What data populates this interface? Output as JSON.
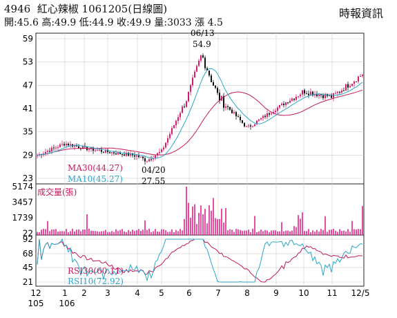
{
  "header": {
    "code": "4946",
    "name": "紅心辣椒",
    "date": "1061205",
    "chart_kind": "(日線圖)",
    "ohlc_line": "開:45.6 高:49.9 低:44.9 收:49.9 量:3033 漲 4.5",
    "brand": "時報資訊"
  },
  "colors": {
    "up": "#d81b6f",
    "down": "#111111",
    "ma30": "#c2185b",
    "ma10": "#2aa6c8",
    "rsi30": "#c2185b",
    "rsi10": "#2aa6c8",
    "volume": "#e0218a"
  },
  "annotations": {
    "peak_date": "06/13",
    "peak_value": "54.9",
    "low_date": "04/20",
    "low_value": "27.55",
    "ma30": "MA30(44.27)",
    "ma10": "MA10(45.27)",
    "volume_title": "成交量(張)",
    "rsi30": "RSI30(60.11)",
    "rsi10": "RSI10(72.92)"
  },
  "x_axis": {
    "months": [
      "12",
      "1",
      "2",
      "3",
      "4",
      "5",
      "6",
      "7",
      "8",
      "9",
      "10",
      "11",
      "12/5"
    ],
    "years": [
      "105",
      "106"
    ]
  },
  "chart_data": [
    {
      "type": "candlestick",
      "title": "4946 紅心辣椒 1061205(日線圖)",
      "ylim": [
        23,
        59
      ],
      "yticks": [
        "59",
        "53",
        "47",
        "41",
        "35",
        "29",
        "23"
      ],
      "series": [
        {
          "name": "MA30",
          "value": 44.27
        },
        {
          "name": "MA10",
          "value": 45.27
        }
      ],
      "keypoints": [
        {
          "month": "12",
          "close": 28.8
        },
        {
          "month": "1",
          "close": 32.0
        },
        {
          "month": "2",
          "close": 30.8
        },
        {
          "month": "3",
          "close": 29.8
        },
        {
          "month": "4",
          "close": 28.8
        },
        {
          "month": "04/20",
          "close": 27.55
        },
        {
          "month": "5",
          "close": 30.0
        },
        {
          "month": "6",
          "close": 45.0
        },
        {
          "month": "06/13",
          "close": 54.9
        },
        {
          "month": "7",
          "close": 44.0
        },
        {
          "month": "8",
          "close": 36.0
        },
        {
          "month": "9",
          "close": 41.0
        },
        {
          "month": "10",
          "close": 45.5
        },
        {
          "month": "11",
          "close": 44.0
        },
        {
          "month": "12/5",
          "close": 49.9
        }
      ],
      "last": {
        "open": 45.6,
        "high": 49.9,
        "low": 44.9,
        "close": 49.9
      }
    },
    {
      "type": "bar",
      "title": "成交量(張)",
      "ylim": [
        0,
        5174
      ],
      "yticks": [
        "5174",
        "3457",
        "1739",
        "22"
      ],
      "last_value": 3033
    },
    {
      "type": "line",
      "ylim": [
        21,
        92
      ],
      "yticks": [
        "92",
        "68",
        "45",
        "21"
      ],
      "series": [
        {
          "name": "RSI30",
          "value": 60.11
        },
        {
          "name": "RSI10",
          "value": 72.92
        }
      ]
    }
  ]
}
